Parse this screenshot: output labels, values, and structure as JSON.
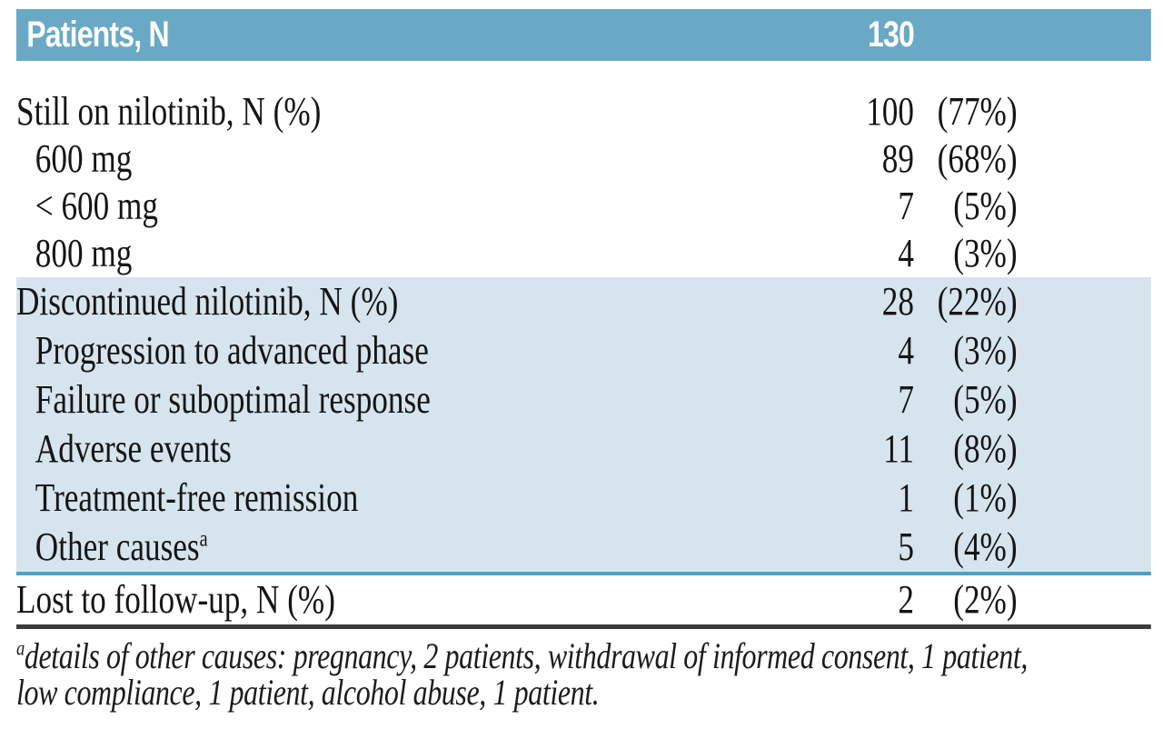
{
  "table": {
    "header": {
      "label": "Patients, N",
      "value": "130"
    },
    "sections": [
      {
        "rows": [
          {
            "label": "Still on nilotinib, N (%)",
            "count": "100",
            "pct": "(77%)"
          },
          {
            "label": "600 mg",
            "count": "89",
            "pct": "(68%)"
          },
          {
            "label": "< 600 mg",
            "count": "7",
            "pct": "(5%)"
          },
          {
            "label": "800 mg",
            "count": "4",
            "pct": "(3%)"
          }
        ]
      },
      {
        "rows": [
          {
            "label": "Discontinued nilotinib, N (%)",
            "count": "28",
            "pct": "(22%)"
          },
          {
            "label": "Progression to advanced phase",
            "count": "4",
            "pct": "(3%)"
          },
          {
            "label": "Failure or suboptimal response",
            "count": "7",
            "pct": "(5%)"
          },
          {
            "label": "Adverse events",
            "count": "11",
            "pct": "(8%)"
          },
          {
            "label": "Treatment-free remission",
            "count": "1",
            "pct": "(1%)"
          },
          {
            "label": "Other causes",
            "sup": "a",
            "count": "5",
            "pct": "(4%)"
          }
        ]
      },
      {
        "rows": [
          {
            "label": "Lost to follow-up, N (%)",
            "count": "2",
            "pct": "(2%)"
          }
        ]
      }
    ],
    "footnote": {
      "marker": "a",
      "line1": "details of other causes: pregnancy, 2 patients, withdrawal of informed consent, 1 patient,",
      "line2": "low compliance, 1 patient, alcohol abuse, 1 patient."
    },
    "colors": {
      "header_bg": "#69A9C6",
      "header_text": "#FFFFFF",
      "band_bg": "#D5E4ED",
      "teal_rule": "#4FA0C3",
      "dark_rule": "#3B3B3B",
      "body_text": "#151515"
    }
  }
}
